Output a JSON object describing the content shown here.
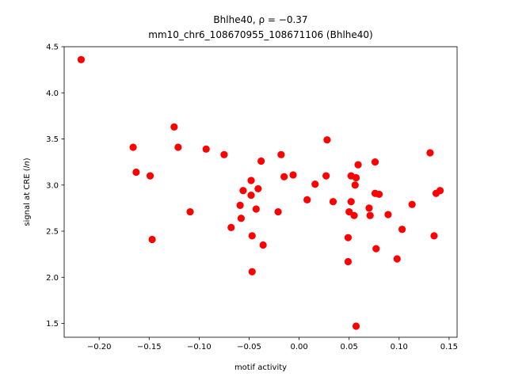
{
  "chart_data": {
    "type": "scatter",
    "title_line1": "Bhlhe40, ρ = −0.37",
    "title_line2": "mm10_chr6_108670955_108671106 (Bhlhe40)",
    "xlabel": "motif activity",
    "ylabel": "signal at CRE (ln)",
    "xlim": [
      -0.235,
      0.158
    ],
    "ylim": [
      1.35,
      4.5
    ],
    "x_ticks": [
      -0.2,
      -0.15,
      -0.1,
      -0.05,
      0.0,
      0.05,
      0.1,
      0.15
    ],
    "x_tick_labels": [
      "−0.20",
      "−0.15",
      "−0.10",
      "−0.05",
      "0.00",
      "0.05",
      "0.10",
      "0.15"
    ],
    "y_ticks": [
      1.5,
      2.0,
      2.5,
      3.0,
      3.5,
      4.0,
      4.5
    ],
    "y_tick_labels": [
      "1.5",
      "2.0",
      "2.5",
      "3.0",
      "3.5",
      "4.0",
      "4.5"
    ],
    "marker_color": "#ff0000",
    "grid": false,
    "points": [
      {
        "x": -0.218,
        "y": 4.36
      },
      {
        "x": -0.166,
        "y": 3.41
      },
      {
        "x": -0.163,
        "y": 3.14
      },
      {
        "x": -0.149,
        "y": 3.1
      },
      {
        "x": -0.147,
        "y": 2.41
      },
      {
        "x": -0.125,
        "y": 3.63
      },
      {
        "x": -0.121,
        "y": 3.41
      },
      {
        "x": -0.109,
        "y": 2.71
      },
      {
        "x": -0.093,
        "y": 3.39
      },
      {
        "x": -0.075,
        "y": 3.33
      },
      {
        "x": -0.068,
        "y": 2.54
      },
      {
        "x": -0.059,
        "y": 2.78
      },
      {
        "x": -0.058,
        "y": 2.64
      },
      {
        "x": -0.056,
        "y": 2.94
      },
      {
        "x": -0.048,
        "y": 3.05
      },
      {
        "x": -0.048,
        "y": 2.89
      },
      {
        "x": -0.047,
        "y": 2.45
      },
      {
        "x": -0.047,
        "y": 2.06
      },
      {
        "x": -0.043,
        "y": 2.74
      },
      {
        "x": -0.041,
        "y": 2.96
      },
      {
        "x": -0.038,
        "y": 3.26
      },
      {
        "x": -0.036,
        "y": 2.35
      },
      {
        "x": -0.021,
        "y": 2.71
      },
      {
        "x": -0.018,
        "y": 3.33
      },
      {
        "x": -0.015,
        "y": 3.09
      },
      {
        "x": -0.006,
        "y": 3.11
      },
      {
        "x": 0.008,
        "y": 2.84
      },
      {
        "x": 0.016,
        "y": 3.01
      },
      {
        "x": 0.027,
        "y": 3.1
      },
      {
        "x": 0.028,
        "y": 3.49
      },
      {
        "x": 0.034,
        "y": 2.82
      },
      {
        "x": 0.049,
        "y": 2.43
      },
      {
        "x": 0.049,
        "y": 2.17
      },
      {
        "x": 0.05,
        "y": 2.71
      },
      {
        "x": 0.052,
        "y": 3.1
      },
      {
        "x": 0.052,
        "y": 2.82
      },
      {
        "x": 0.055,
        "y": 2.67
      },
      {
        "x": 0.056,
        "y": 3.0
      },
      {
        "x": 0.057,
        "y": 3.08
      },
      {
        "x": 0.057,
        "y": 1.47
      },
      {
        "x": 0.059,
        "y": 3.22
      },
      {
        "x": 0.07,
        "y": 2.75
      },
      {
        "x": 0.071,
        "y": 2.67
      },
      {
        "x": 0.076,
        "y": 3.25
      },
      {
        "x": 0.076,
        "y": 2.91
      },
      {
        "x": 0.077,
        "y": 2.31
      },
      {
        "x": 0.08,
        "y": 2.9
      },
      {
        "x": 0.089,
        "y": 2.68
      },
      {
        "x": 0.098,
        "y": 2.2
      },
      {
        "x": 0.103,
        "y": 2.52
      },
      {
        "x": 0.113,
        "y": 2.79
      },
      {
        "x": 0.131,
        "y": 3.35
      },
      {
        "x": 0.135,
        "y": 2.45
      },
      {
        "x": 0.137,
        "y": 2.91
      },
      {
        "x": 0.141,
        "y": 2.94
      }
    ]
  }
}
